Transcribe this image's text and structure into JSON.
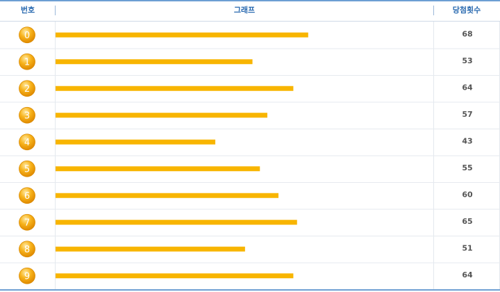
{
  "chart_data": {
    "type": "bar",
    "columns": [
      "번호",
      "그래프",
      "당첨횟수"
    ],
    "categories": [
      "0",
      "1",
      "2",
      "3",
      "4",
      "5",
      "6",
      "7",
      "8",
      "9"
    ],
    "values": [
      68,
      53,
      64,
      57,
      43,
      55,
      60,
      65,
      51,
      64
    ],
    "color": "#f8b500"
  }
}
